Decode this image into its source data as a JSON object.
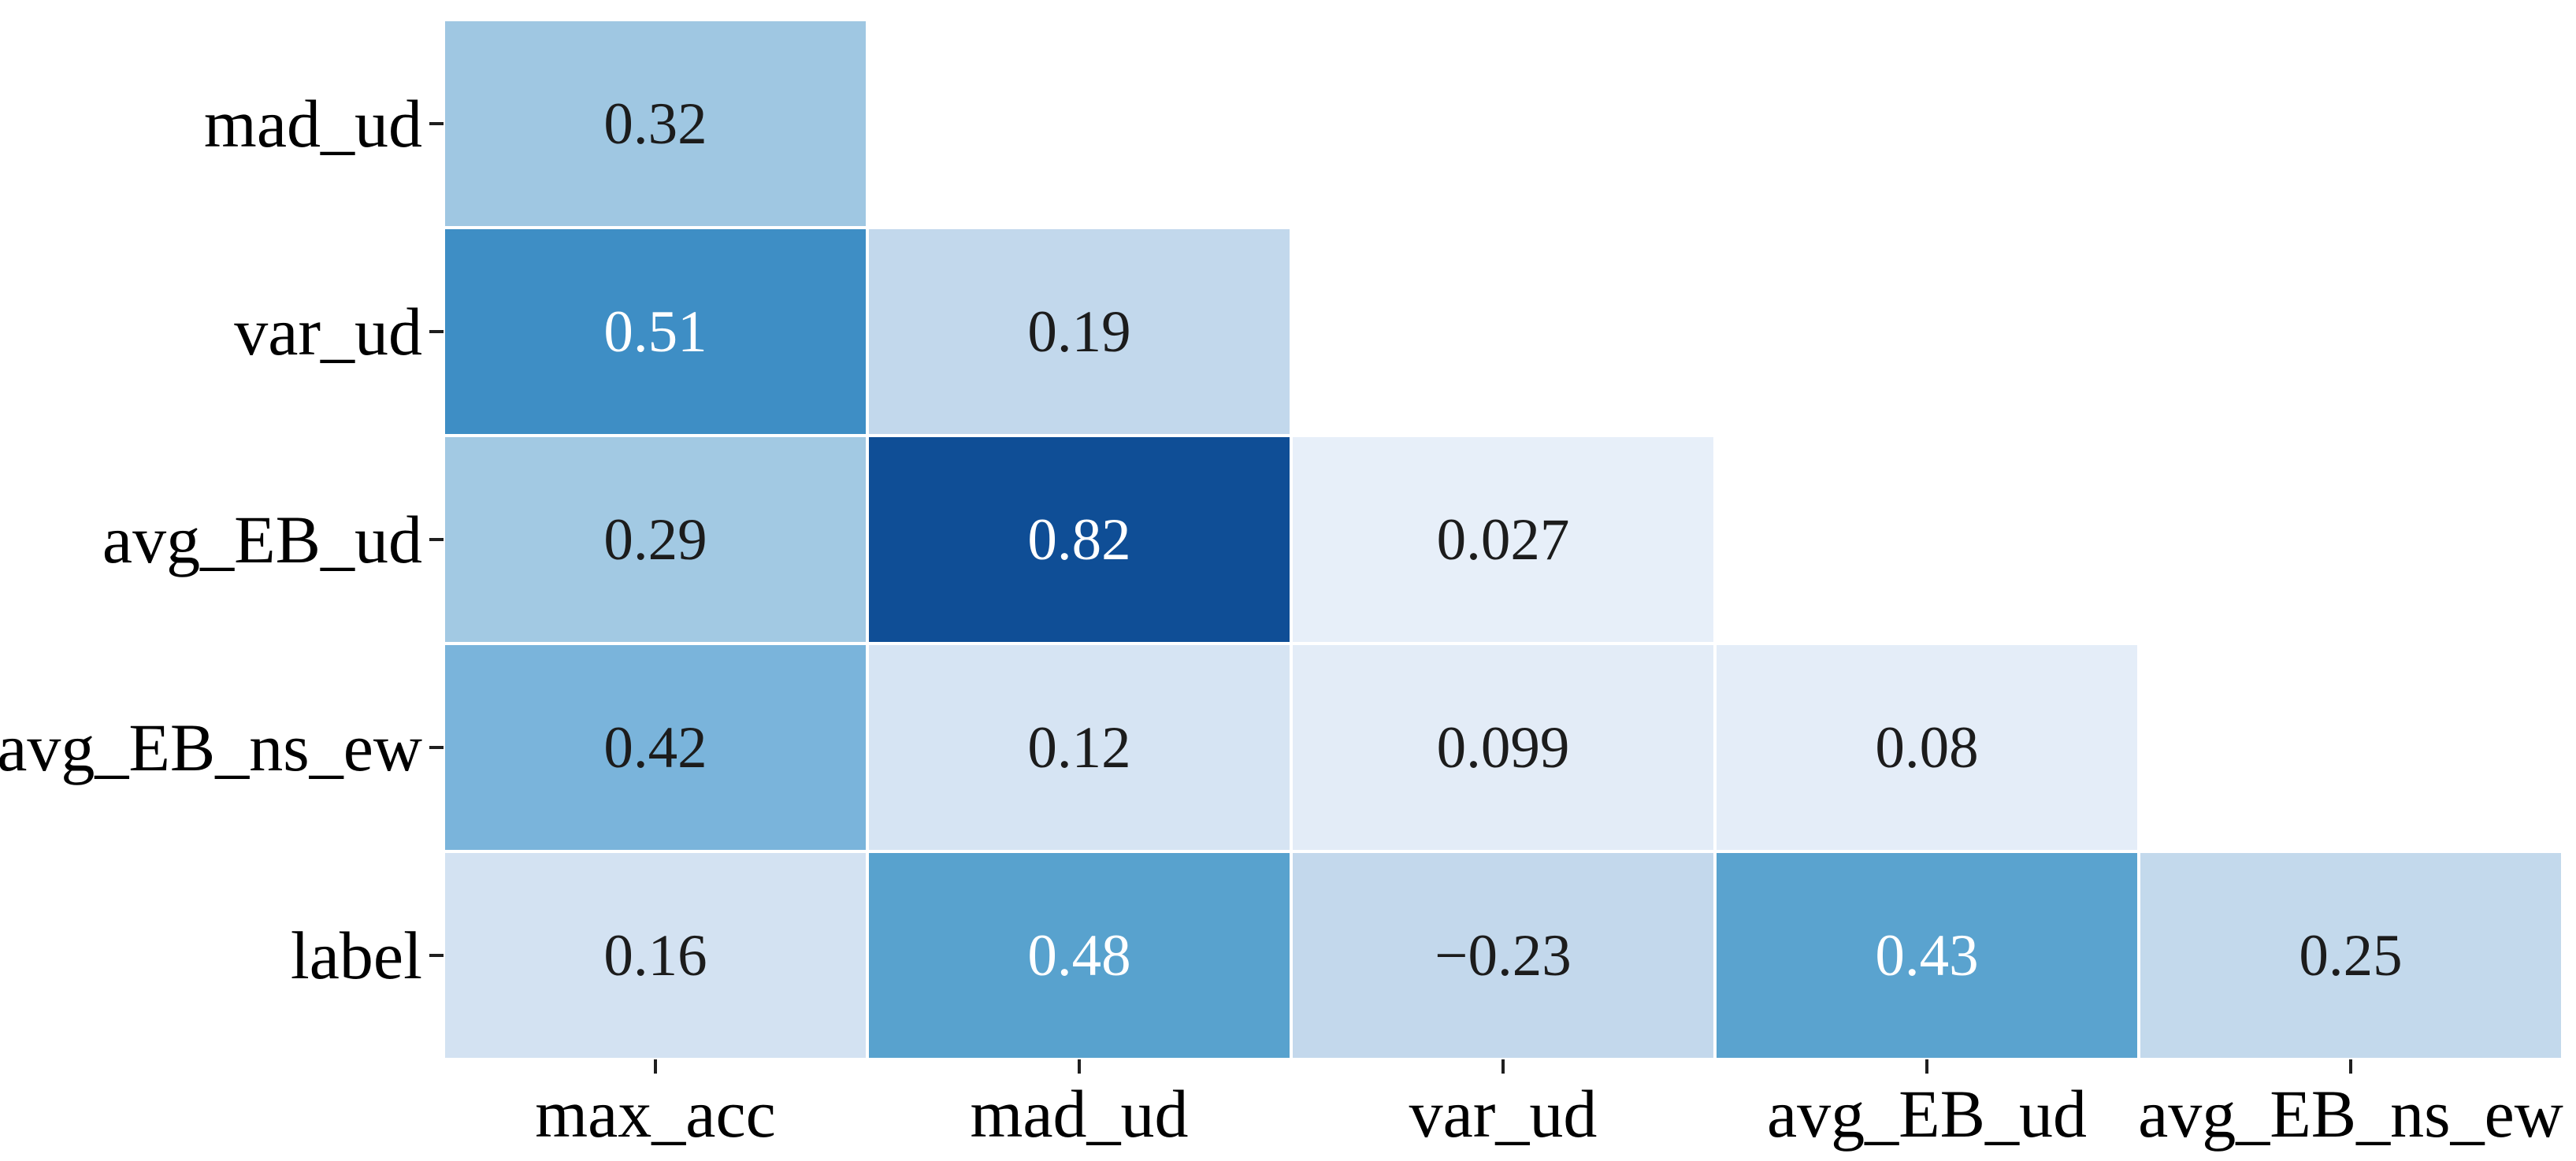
{
  "chart_data": {
    "type": "heatmap",
    "title": "",
    "subtitle": "",
    "shape": "lower-triangular correlation matrix (upper triangle masked/blank)",
    "colormap": "Blues",
    "x_labels": [
      "max_acc",
      "mad_ud",
      "var_ud",
      "avg_EB_ud",
      "avg_EB_ns_ew"
    ],
    "y_labels": [
      "mad_ud",
      "var_ud",
      "avg_EB_ud",
      "avg_EB_ns_ew",
      "label"
    ],
    "legend": "none",
    "grid": "off",
    "series": [
      {
        "name": "mad_ud",
        "values": [
          0.32,
          null,
          null,
          null,
          null
        ]
      },
      {
        "name": "var_ud",
        "values": [
          0.51,
          0.19,
          null,
          null,
          null
        ]
      },
      {
        "name": "avg_EB_ud",
        "values": [
          0.29,
          0.82,
          0.027,
          null,
          null
        ]
      },
      {
        "name": "avg_EB_ns_ew",
        "values": [
          0.42,
          0.12,
          0.099,
          0.08,
          null
        ]
      },
      {
        "name": "label",
        "values": [
          0.16,
          0.48,
          -0.23,
          0.43,
          0.25
        ]
      }
    ],
    "cells": [
      {
        "row": 0,
        "col": 0,
        "value": 0.32,
        "label": "0.32",
        "bg": "#9fc7e2",
        "fg": "#1c1c1c"
      },
      {
        "row": 1,
        "col": 0,
        "value": 0.51,
        "label": "0.51",
        "bg": "#3e8ec5",
        "fg": "#ffffff"
      },
      {
        "row": 1,
        "col": 1,
        "value": 0.19,
        "label": "0.19",
        "bg": "#c2d8ec",
        "fg": "#1c1c1c"
      },
      {
        "row": 2,
        "col": 0,
        "value": 0.29,
        "label": "0.29",
        "bg": "#a2c9e3",
        "fg": "#1c1c1c"
      },
      {
        "row": 2,
        "col": 1,
        "value": 0.82,
        "label": "0.82",
        "bg": "#0f4e96",
        "fg": "#ffffff"
      },
      {
        "row": 2,
        "col": 2,
        "value": 0.027,
        "label": "0.027",
        "bg": "#e7eff9",
        "fg": "#1c1c1c"
      },
      {
        "row": 3,
        "col": 0,
        "value": 0.42,
        "label": "0.42",
        "bg": "#7ab4db",
        "fg": "#1c1c1c"
      },
      {
        "row": 3,
        "col": 1,
        "value": 0.12,
        "label": "0.12",
        "bg": "#d6e4f3",
        "fg": "#1c1c1c"
      },
      {
        "row": 3,
        "col": 2,
        "value": 0.099,
        "label": "0.099",
        "bg": "#e3ecf7",
        "fg": "#1c1c1c"
      },
      {
        "row": 3,
        "col": 3,
        "value": 0.08,
        "label": "0.08",
        "bg": "#e4edf8",
        "fg": "#1c1c1c"
      },
      {
        "row": 4,
        "col": 0,
        "value": 0.16,
        "label": "0.16",
        "bg": "#d3e2f2",
        "fg": "#1c1c1c"
      },
      {
        "row": 4,
        "col": 1,
        "value": 0.48,
        "label": "0.48",
        "bg": "#58a2ce",
        "fg": "#ffffff"
      },
      {
        "row": 4,
        "col": 2,
        "value": -0.23,
        "label": "−0.23",
        "bg": "#c3d8ec",
        "fg": "#1c1c1c"
      },
      {
        "row": 4,
        "col": 3,
        "value": 0.43,
        "label": "0.43",
        "bg": "#5aa3cf",
        "fg": "#ffffff"
      },
      {
        "row": 4,
        "col": 4,
        "value": 0.25,
        "label": "0.25",
        "bg": "#c3d9ec",
        "fg": "#1c1c1c"
      }
    ],
    "value_range_shown": [
      -0.23,
      0.82
    ]
  },
  "colors": {
    "background": "#ffffff",
    "cell_gap": "#ffffff",
    "tick_mark": "#1f1f1f",
    "tick_label_text": "#000000",
    "annotation_dark_text": "#1c1c1c",
    "annotation_light_text": "#ffffff",
    "darkest_cell": "#0f4e96",
    "lightest_cell": "#e7eff9"
  }
}
